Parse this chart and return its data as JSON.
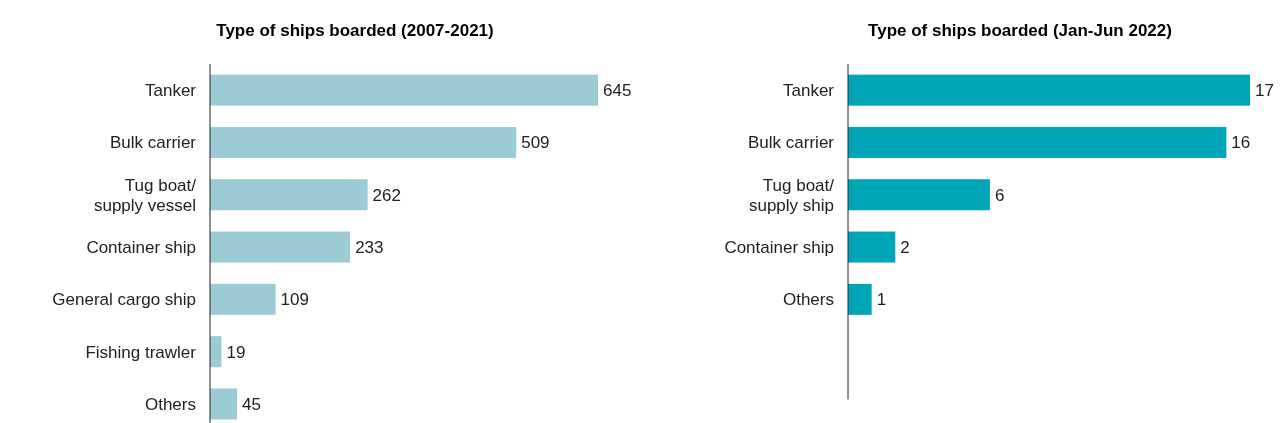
{
  "chart_data": [
    {
      "type": "bar",
      "orientation": "horizontal",
      "title": "Type of ships boarded (2007-2021)",
      "categories": [
        "Tanker",
        "Bulk carrier",
        "Tug boat/supply vessel",
        "Container ship",
        "General cargo ship",
        "Fishing trawler",
        "Others"
      ],
      "values": [
        645,
        509,
        262,
        233,
        109,
        19,
        45
      ],
      "color": "#9ccbd6",
      "data_labels": true
    },
    {
      "type": "bar",
      "orientation": "horizontal",
      "title": "Type of ships boarded (Jan-Jun 2022)",
      "categories": [
        "Tanker",
        "Bulk carrier",
        "Tug boat/supply ship",
        "Container ship",
        "Others"
      ],
      "values": [
        17,
        16,
        6,
        2,
        1
      ],
      "color": "#00a5b8",
      "data_labels": true
    }
  ]
}
